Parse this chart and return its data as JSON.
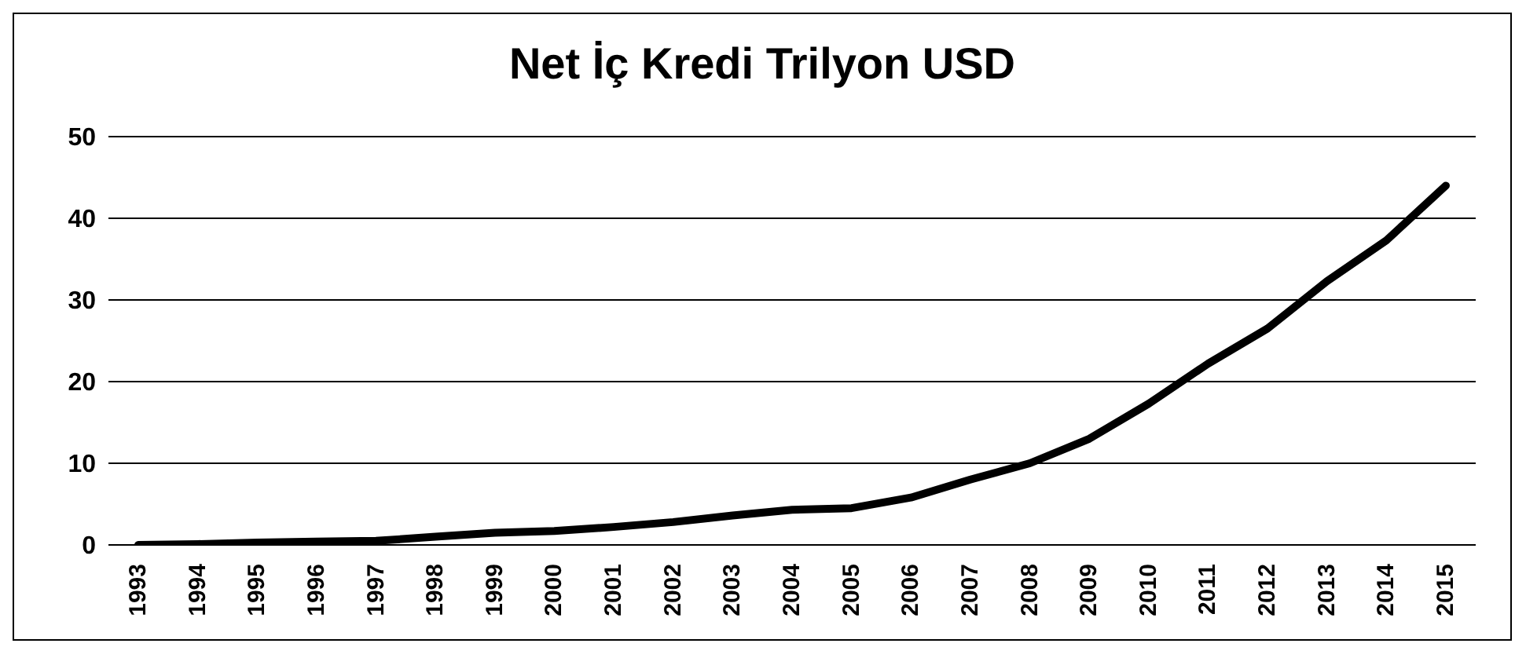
{
  "chart_data": {
    "type": "line",
    "title": "Net İç Kredi Trilyon USD",
    "categories": [
      "1993",
      "1994",
      "1995",
      "1996",
      "1997",
      "1998",
      "1999",
      "2000",
      "2001",
      "2002",
      "2003",
      "2004",
      "2005",
      "2006",
      "2007",
      "2008",
      "2009",
      "2010",
      "2011",
      "2012",
      "2013",
      "2014",
      "2015"
    ],
    "series": [
      {
        "color": "#000000",
        "values": [
          0,
          0.1,
          0.3,
          0.4,
          0.5,
          1.0,
          1.5,
          1.7,
          2.2,
          2.8,
          3.6,
          4.3,
          4.5,
          5.8,
          8,
          10,
          13,
          17.3,
          22.2,
          26.5,
          32.3,
          37.3,
          44
        ]
      }
    ],
    "ylim": [
      0,
      50
    ],
    "yticks": [
      0,
      10,
      20,
      30,
      40,
      50
    ],
    "grid": "y",
    "legend": false,
    "marker": "none",
    "line_style": "solid"
  }
}
